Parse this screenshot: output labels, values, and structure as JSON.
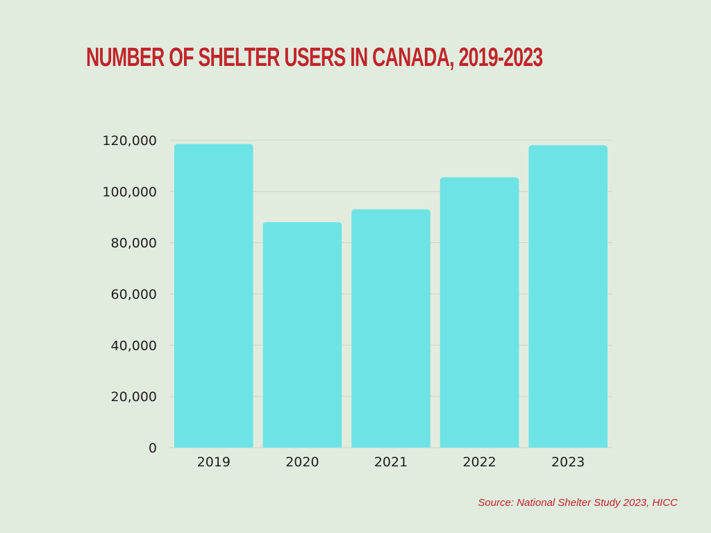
{
  "chart_data": {
    "type": "bar",
    "title": "NUMBER OF SHELTER USERS IN CANADA, 2019-2023",
    "categories": [
      "2019",
      "2020",
      "2021",
      "2022",
      "2023"
    ],
    "values": [
      118500,
      88000,
      93000,
      105500,
      118000
    ],
    "yticks": [
      "0",
      "20,000",
      "40,000",
      "60,000",
      "80,000",
      "100,000",
      "120,000"
    ],
    "ylim": [
      0,
      120000
    ],
    "grid": true,
    "bar_color": "#6ee3e6",
    "grid_color": "#c9d6c5"
  },
  "source": "Source: National Shelter Study 2023, HICC"
}
